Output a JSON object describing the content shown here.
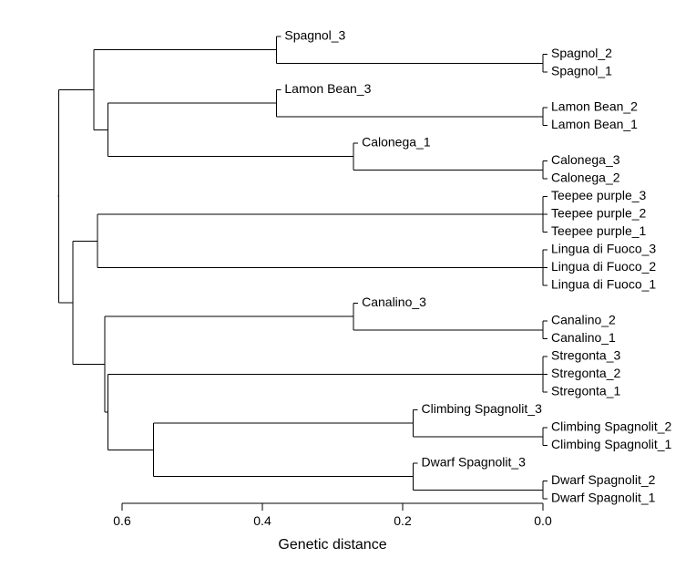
{
  "diagram": {
    "type": "dendrogram",
    "orientation": "leaves-right",
    "xlabel": "Genetic distance",
    "axis": {
      "ticks": [
        0.6,
        0.4,
        0.2,
        0.0
      ],
      "tick_labels": [
        "0.6",
        "0.4",
        "0.2",
        "0.0"
      ],
      "reversed": true
    },
    "tree": {
      "id": "root",
      "height": 0.69,
      "children": [
        {
          "id": "n_A",
          "height": 0.64,
          "children": [
            {
              "id": "n_spag",
              "height": 0.38,
              "children": [
                {
                  "label": "Spagnol_3"
                },
                {
                  "id": "n_spag12",
                  "height": 0.0,
                  "children": [
                    {
                      "label": "Spagnol_2"
                    },
                    {
                      "label": "Spagnol_1"
                    }
                  ]
                }
              ]
            },
            {
              "id": "n_A2",
              "height": 0.62,
              "children": [
                {
                  "id": "n_lamon",
                  "height": 0.38,
                  "children": [
                    {
                      "label": "Lamon Bean_3"
                    },
                    {
                      "id": "n_lamon12",
                      "height": 0.0,
                      "children": [
                        {
                          "label": "Lamon Bean_2"
                        },
                        {
                          "label": "Lamon Bean_1"
                        }
                      ]
                    }
                  ]
                },
                {
                  "id": "n_calo",
                  "height": 0.27,
                  "children": [
                    {
                      "label": "Calonega_1"
                    },
                    {
                      "id": "n_calo32",
                      "height": 0.0,
                      "children": [
                        {
                          "label": "Calonega_3"
                        },
                        {
                          "label": "Calonega_2"
                        }
                      ]
                    }
                  ]
                }
              ]
            }
          ]
        },
        {
          "id": "n_B",
          "height": 0.67,
          "children": [
            {
              "id": "n_B1",
              "height": 0.635,
              "children": [
                {
                  "id": "n_teepee",
                  "height": 0.0,
                  "children": [
                    {
                      "label": "Teepee purple_3"
                    },
                    {
                      "label": "Teepee purple_2"
                    },
                    {
                      "label": "Teepee purple_1"
                    }
                  ]
                },
                {
                  "id": "n_lingua",
                  "height": 0.0,
                  "children": [
                    {
                      "label": "Lingua di Fuoco_3"
                    },
                    {
                      "label": "Lingua di Fuoco_2"
                    },
                    {
                      "label": "Lingua di Fuoco_1"
                    }
                  ]
                }
              ]
            },
            {
              "id": "n_B2",
              "height": 0.625,
              "children": [
                {
                  "id": "n_cana",
                  "height": 0.27,
                  "children": [
                    {
                      "label": "Canalino_3"
                    },
                    {
                      "id": "n_cana21",
                      "height": 0.0,
                      "children": [
                        {
                          "label": "Canalino_2"
                        },
                        {
                          "label": "Canalino_1"
                        }
                      ]
                    }
                  ]
                },
                {
                  "id": "n_B3",
                  "height": 0.62,
                  "children": [
                    {
                      "id": "n_streg",
                      "height": 0.0,
                      "children": [
                        {
                          "label": "Stregonta_3"
                        },
                        {
                          "label": "Stregonta_2"
                        },
                        {
                          "label": "Stregonta_1"
                        }
                      ]
                    },
                    {
                      "id": "n_climbdwarf",
                      "height": 0.555,
                      "children": [
                        {
                          "id": "n_climb",
                          "height": 0.185,
                          "children": [
                            {
                              "label": "Climbing Spagnolit_3"
                            },
                            {
                              "id": "n_climb21",
                              "height": 0.0,
                              "children": [
                                {
                                  "label": "Climbing Spagnolit_2"
                                },
                                {
                                  "label": "Climbing Spagnolit_1"
                                }
                              ]
                            }
                          ]
                        },
                        {
                          "id": "n_dwarf",
                          "height": 0.185,
                          "children": [
                            {
                              "label": "Dwarf Spagnolit_3"
                            },
                            {
                              "id": "n_dwarf21",
                              "height": 0.0,
                              "children": [
                                {
                                  "label": "Dwarf Spagnolit_2"
                                },
                                {
                                  "label": "Dwarf Spagnolit_1"
                                }
                              ]
                            }
                          ]
                        }
                      ]
                    }
                  ]
                }
              ]
            }
          ]
        }
      ]
    }
  }
}
